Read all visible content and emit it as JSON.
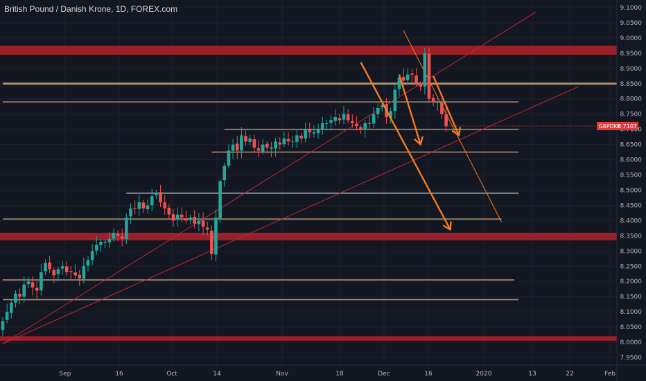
{
  "header": {
    "title": "British Pound / Danish Krone, 1D, FOREX.com"
  },
  "price_tag": {
    "symbol": "GBPDKK",
    "value": "8.7107"
  },
  "colors": {
    "background": "#131722",
    "up": "#26a69a",
    "down": "#ef5350",
    "zone": "#b2222a",
    "level": "#c8a27a",
    "white_level": "#d1d4dc",
    "arrow": "#f57c22",
    "trendline": "#c2272d",
    "tag": "#e53935"
  },
  "chart_data": {
    "type": "candlestick",
    "symbol": "GBPDKK",
    "timeframe": "1D",
    "ylim": [
      7.925,
      9.125
    ],
    "y_ticks": [
      "9.1000",
      "9.0500",
      "9.0000",
      "8.9500",
      "8.9000",
      "8.8500",
      "8.8000",
      "8.7500",
      "8.7000",
      "8.6500",
      "8.6000",
      "8.5500",
      "8.5000",
      "8.4500",
      "8.4000",
      "8.3500",
      "8.3000",
      "8.2500",
      "8.2000",
      "8.1500",
      "8.1000",
      "8.0500",
      "8.0000",
      "7.9500"
    ],
    "x_ticks": [
      "Sep",
      "16",
      "Oct",
      "14",
      "Nov",
      "18",
      "Dec",
      "16",
      "2020",
      "13",
      "22",
      "Feb"
    ],
    "last_price": 8.7107,
    "closes": [
      8.07,
      8.1,
      8.13,
      8.16,
      8.15,
      8.19,
      8.2,
      8.18,
      8.17,
      8.23,
      8.26,
      8.24,
      8.22,
      8.24,
      8.25,
      8.23,
      8.23,
      8.22,
      8.21,
      8.25,
      8.27,
      8.3,
      8.32,
      8.33,
      8.33,
      8.34,
      8.36,
      8.35,
      8.34,
      8.41,
      8.44,
      8.44,
      8.46,
      8.44,
      8.45,
      8.48,
      8.49,
      8.46,
      8.44,
      8.42,
      8.4,
      8.42,
      8.41,
      8.4,
      8.41,
      8.39,
      8.4,
      8.38,
      8.37,
      8.29,
      8.41,
      8.53,
      8.58,
      8.63,
      8.65,
      8.63,
      8.68,
      8.66,
      8.67,
      8.64,
      8.63,
      8.65,
      8.64,
      8.64,
      8.66,
      8.65,
      8.67,
      8.66,
      8.66,
      8.68,
      8.67,
      8.7,
      8.69,
      8.69,
      8.7,
      8.72,
      8.72,
      8.73,
      8.74,
      8.73,
      8.75,
      8.73,
      8.72,
      8.71,
      8.7,
      8.72,
      8.72,
      8.75,
      8.77,
      8.78,
      8.74,
      8.76,
      8.83,
      8.87,
      8.86,
      8.88,
      8.88,
      8.85,
      8.84,
      8.95,
      8.8,
      8.79,
      8.79,
      8.75,
      8.71
    ],
    "zones": [
      {
        "low": 8.945,
        "high": 8.975
      },
      {
        "low": 8.335,
        "high": 8.36
      },
      {
        "low": 8.005,
        "high": 8.02
      }
    ],
    "horizontal_levels": [
      {
        "price": 8.85,
        "start_bar": 0,
        "end": "full",
        "style": "level-thick"
      },
      {
        "price": 8.79,
        "start_bar": 0,
        "end_bar": 121,
        "style": "level"
      },
      {
        "price": 8.7,
        "start_bar": 52,
        "end_bar": 121,
        "style": "level"
      },
      {
        "price": 8.625,
        "start_bar": 49,
        "end_bar": 121,
        "style": "level"
      },
      {
        "price": 8.49,
        "start_bar": 29,
        "end_bar": 121,
        "style": "white"
      },
      {
        "price": 8.405,
        "start_bar": 0,
        "end_bar": 117,
        "style": "level"
      },
      {
        "price": 8.205,
        "start_bar": 0,
        "end_bar": 120,
        "style": "level"
      },
      {
        "price": 8.14,
        "start_bar": 0,
        "end_bar": 121,
        "style": "level"
      }
    ],
    "trendlines": [
      {
        "from": [
          0,
          7.995
        ],
        "to": [
          125,
          9.085
        ],
        "thin": true
      },
      {
        "from": [
          0,
          7.995
        ],
        "to": [
          135,
          8.84
        ],
        "thin": true
      },
      {
        "from": [
          94,
          9.025
        ],
        "to": [
          117,
          8.395
        ],
        "thin": true,
        "color": "arrow"
      }
    ],
    "arrows": [
      {
        "from": [
          84,
          8.92
        ],
        "to": [
          105,
          8.37
        ]
      },
      {
        "from": [
          93,
          8.88
        ],
        "to": [
          98,
          8.65
        ]
      },
      {
        "from": [
          101,
          8.875
        ],
        "to": [
          107,
          8.68
        ]
      }
    ]
  }
}
